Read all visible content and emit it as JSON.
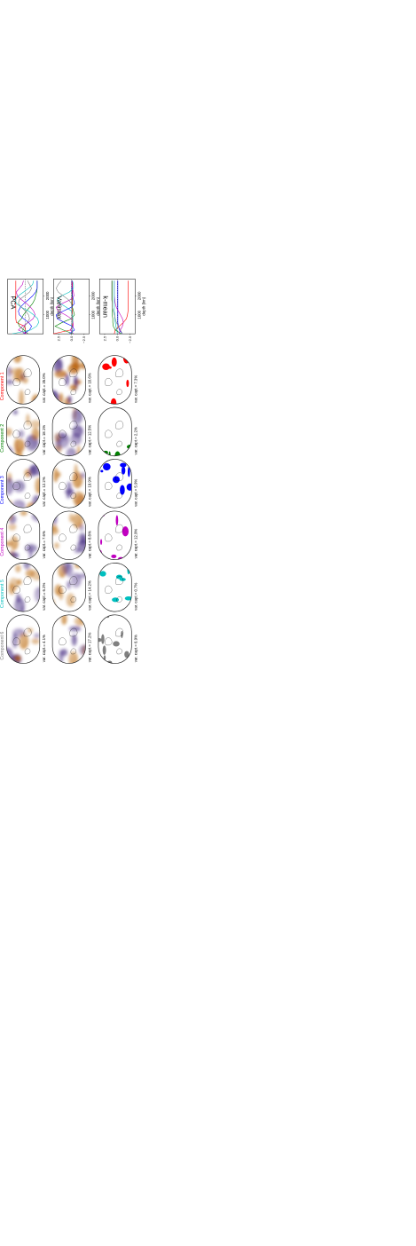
{
  "figure": {
    "rows": [
      {
        "method": "PCA"
      },
      {
        "method": "Varimax"
      },
      {
        "method": "k-mean"
      }
    ],
    "components": [
      {
        "label": "Component 1",
        "color": "#ff0000"
      },
      {
        "label": "Component 2",
        "color": "#008000"
      },
      {
        "label": "Component 3",
        "color": "#0000ff"
      },
      {
        "label": "Component 4",
        "color": "#c000c0"
      },
      {
        "label": "Component 5",
        "color": "#00bfbf"
      },
      {
        "label": "Component 6",
        "color": "#808080"
      }
    ],
    "variance_captured": [
      [
        "var. capt.= 35.0%",
        "var. capt.= 18.1%",
        "var. capt.= 12.2%",
        "var. capt.= 7.6%",
        "var. capt.= 6.2%",
        "var. capt.= 4.1%"
      ],
      [
        "var. capt.= 10.6%",
        "var. capt.= 12.5%",
        "var. capt.= 19.9%",
        "var. capt.= 8.8%",
        "var. capt.= 14.2%",
        "var. capt.= 17.2%"
      ],
      [
        "var. capt.= 7.3%",
        "var. capt.= 2.2%",
        "var. capt.= 5.9%",
        "var. capt.= 12.9%",
        "var. capt.= 0.7%",
        "var. capt.= 6.9%"
      ]
    ],
    "map_colormap": {
      "negative": "#b8620a",
      "neutral": "#f4f4f4",
      "positive": "#3b1f7a"
    }
  },
  "chart_data": [
    {
      "type": "line",
      "panel": "PCA",
      "ylabel": "depth (km)",
      "yticks": [
        "1000",
        "2000"
      ],
      "ylim": [
        0,
        2890
      ],
      "xlim": [
        -3.5,
        3.5
      ],
      "xticks": [],
      "zero_line": "dotted",
      "depth": [
        0,
        200,
        400,
        600,
        800,
        1000,
        1200,
        1400,
        1600,
        1800,
        2000,
        2200,
        2400,
        2600,
        2800
      ],
      "series": [
        {
          "color": "#ff0000",
          "values": [
            0.1,
            0.0,
            0.2,
            1.8,
            1.9,
            1.9,
            1.9,
            1.9,
            1.9,
            1.9,
            1.9,
            1.9,
            1.9,
            1.9,
            1.9
          ]
        },
        {
          "color": "#008000",
          "values": [
            -0.5,
            0.3,
            1.2,
            1.5,
            0.8,
            0.4,
            -0.2,
            -0.8,
            -1.4,
            -1.8,
            -2.0,
            -2.2,
            -2.3,
            -2.3,
            -2.3
          ]
        },
        {
          "color": "#0000ff",
          "values": [
            0.4,
            -0.8,
            -1.2,
            -0.6,
            0.4,
            1.2,
            1.4,
            1.0,
            0.3,
            -0.6,
            -1.4,
            -2.0,
            -2.3,
            -2.3,
            -2.3
          ]
        },
        {
          "color": "#c000c0",
          "values": [
            -0.3,
            1.4,
            0.6,
            -0.6,
            -1.5,
            -1.9,
            -1.6,
            -1.0,
            -0.2,
            0.8,
            1.6,
            1.8,
            1.2,
            0.6,
            0.4
          ]
        },
        {
          "color": "#00bfbf",
          "values": [
            2.6,
            -1.0,
            -2.2,
            -2.6,
            -2.4,
            -1.6,
            -0.6,
            0.8,
            1.8,
            2.0,
            1.4,
            0.4,
            -0.6,
            -1.4,
            -1.6
          ]
        },
        {
          "color": "#808080",
          "values": [
            0.4,
            0.6,
            0.2,
            -0.4,
            -0.8,
            -0.6,
            0.0,
            0.8,
            1.4,
            1.2,
            0.2,
            -0.8,
            -1.2,
            -0.8,
            -0.4
          ]
        }
      ]
    },
    {
      "type": "line",
      "panel": "Varimax",
      "ylabel": "depth (km)",
      "yticks": [
        "1000",
        "2000"
      ],
      "xticks": [
        "2.5",
        "0.0",
        "−2.5"
      ],
      "ylim": [
        0,
        2890
      ],
      "xlim": [
        -3.5,
        3.5
      ],
      "zero_line": "dotted",
      "depth": [
        0,
        200,
        400,
        600,
        800,
        1000,
        1200,
        1400,
        1600,
        1800,
        2000,
        2200,
        2400,
        2600,
        2800
      ],
      "series": [
        {
          "color": "#ff0000",
          "values": [
            3.6,
            0.2,
            -0.2,
            -0.3,
            -0.2,
            -0.2,
            -0.2,
            -0.2,
            -0.2,
            -0.2,
            -0.2,
            -0.2,
            -0.2,
            -0.2,
            -0.2
          ]
        },
        {
          "color": "#008000",
          "values": [
            -0.3,
            1.6,
            3.2,
            1.8,
            0.0,
            -0.6,
            -0.4,
            -0.2,
            -0.1,
            -0.1,
            -0.1,
            -0.1,
            -0.1,
            -0.1,
            -0.1
          ]
        },
        {
          "color": "#0000ff",
          "values": [
            0.4,
            -0.6,
            -0.2,
            1.4,
            2.8,
            3.0,
            1.6,
            0.0,
            -0.6,
            -0.4,
            -0.2,
            -0.1,
            -0.1,
            -0.1,
            -0.1
          ]
        },
        {
          "color": "#c000c0",
          "values": [
            -0.4,
            0.2,
            -0.4,
            -0.3,
            0.0,
            1.2,
            2.6,
            3.0,
            1.8,
            0.2,
            -0.5,
            -0.4,
            -0.2,
            -0.1,
            -0.1
          ]
        },
        {
          "color": "#00bfbf",
          "values": [
            -0.2,
            -0.2,
            0.0,
            -0.2,
            -0.3,
            -0.2,
            0.0,
            1.0,
            2.2,
            2.8,
            2.0,
            0.4,
            -0.4,
            -0.4,
            -0.2
          ]
        },
        {
          "color": "#808080",
          "values": [
            -0.2,
            -0.1,
            -0.1,
            -0.1,
            -0.1,
            -0.1,
            -0.1,
            -0.1,
            0.0,
            0.6,
            1.6,
            2.6,
            3.0,
            2.6,
            2.0
          ]
        }
      ]
    },
    {
      "type": "line",
      "panel": "k-mean",
      "ylabel": "depth (km)",
      "yticks": [
        "1000",
        "2000"
      ],
      "xticks": [
        "2.5",
        "0.0",
        "−2.5"
      ],
      "ylim": [
        0,
        2890
      ],
      "xlim": [
        -3.5,
        3.5
      ],
      "zero_line": "dotted",
      "depth": [
        0,
        200,
        400,
        600,
        800,
        1000,
        1200,
        1400,
        1600,
        1800,
        2000,
        2200,
        2400,
        2600,
        2800
      ],
      "series": [
        {
          "color": "#ff0000",
          "values": [
            0.6,
            0.4,
            -0.4,
            -1.2,
            -1.8,
            -2.0,
            -2.1,
            -2.1,
            -2.1,
            -2.1,
            -2.1,
            -2.1,
            -2.1,
            -2.1,
            -2.1
          ]
        },
        {
          "color": "#008000",
          "values": [
            -0.8,
            0.4,
            0.8,
            0.9,
            0.9,
            1.0,
            1.0,
            1.0,
            1.0,
            1.0,
            1.0,
            1.0,
            1.0,
            1.0,
            1.0
          ]
        },
        {
          "color": "#0000ff",
          "values": [
            -1.0,
            -0.4,
            -0.2,
            -0.1,
            -0.1,
            -0.1,
            -0.1,
            -0.1,
            -0.1,
            -0.1,
            -0.1,
            -0.1,
            -0.1,
            -0.1,
            -0.1
          ]
        },
        {
          "color": "#c000c0",
          "values": [
            -0.3,
            -0.6,
            -1.0,
            -1.2,
            -1.0,
            -0.6,
            -0.2,
            0.2,
            0.4,
            0.5,
            0.6,
            0.6,
            0.6,
            0.6,
            0.6
          ]
        },
        {
          "color": "#00bfbf",
          "values": [
            0.0,
            0.1,
            0.3,
            0.4,
            0.5,
            0.5,
            0.6,
            0.6,
            0.6,
            0.6,
            0.6,
            0.6,
            0.6,
            0.6,
            0.6
          ]
        },
        {
          "color": "#808080",
          "values": [
            -1.0,
            -0.6,
            -0.2,
            0.2,
            0.4,
            0.6,
            0.8,
            1.0,
            1.0,
            1.1,
            1.1,
            1.1,
            1.1,
            1.1,
            1.1
          ]
        }
      ]
    }
  ]
}
